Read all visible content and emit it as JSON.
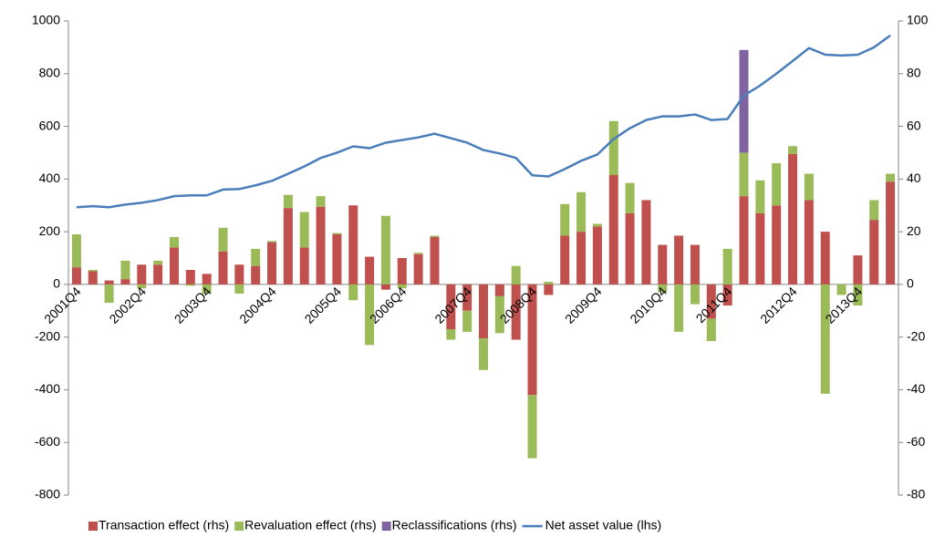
{
  "chart_data": {
    "type": "combo",
    "categories": [
      "2001Q4",
      null,
      null,
      null,
      "2002Q4",
      null,
      null,
      null,
      "2003Q4",
      null,
      null,
      null,
      "2004Q4",
      null,
      null,
      null,
      "2005Q4",
      null,
      null,
      null,
      "2006Q4",
      null,
      null,
      null,
      "2007Q4",
      null,
      null,
      null,
      "2008Q4",
      null,
      null,
      null,
      "2009Q4",
      null,
      null,
      null,
      "2010Q4",
      null,
      null,
      null,
      "2011Q4",
      null,
      null,
      null,
      "2012Q4",
      null,
      null,
      null,
      "2013Q4",
      null,
      null
    ],
    "series": [
      {
        "name": "Transaction effect (rhs)",
        "type": "bar",
        "axis": "y2",
        "color": "#c0504d",
        "values": [
          6.5,
          5,
          1.5,
          2,
          7.5,
          7.5,
          14,
          5.5,
          4,
          12.5,
          7.5,
          7,
          16,
          29,
          14,
          29.5,
          19,
          30,
          10.5,
          -2,
          10,
          11.5,
          18,
          -17,
          -10,
          -20.5,
          -4.5,
          -21,
          -42,
          -4,
          18.5,
          20,
          22,
          41.5,
          27,
          32,
          15,
          18.5,
          15,
          -13,
          -8,
          33.5,
          27,
          30,
          49.5,
          32,
          20,
          0,
          11,
          24.5,
          39
        ]
      },
      {
        "name": "Revaluation effect (rhs)",
        "type": "bar",
        "axis": "y2",
        "color": "#9bbb59",
        "values": [
          12.5,
          0.5,
          -7,
          7,
          -1.5,
          1.5,
          4,
          -0.5,
          -3.5,
          9,
          -3.5,
          6.5,
          0.5,
          5,
          13.5,
          4,
          0.5,
          -6,
          -23,
          26,
          -1.5,
          0.5,
          0.5,
          -4,
          -8,
          -12,
          -14,
          7,
          -24,
          1,
          12,
          15,
          1,
          20.5,
          11.5,
          0,
          -3,
          -18,
          -7.5,
          -8.5,
          13.5,
          16.5,
          12.5,
          16,
          3,
          10,
          -41.5,
          -4,
          -8,
          7.5,
          3
        ]
      },
      {
        "name": "Reclassifications (rhs)",
        "type": "bar",
        "axis": "y2",
        "color": "#8064a2",
        "values": [
          null,
          null,
          null,
          null,
          null,
          null,
          null,
          null,
          null,
          null,
          null,
          null,
          null,
          null,
          null,
          null,
          null,
          null,
          null,
          null,
          null,
          null,
          null,
          null,
          null,
          null,
          null,
          null,
          null,
          null,
          null,
          null,
          null,
          null,
          null,
          null,
          null,
          null,
          null,
          null,
          null,
          39,
          null,
          null,
          null,
          null,
          null,
          null,
          null,
          null,
          null
        ]
      },
      {
        "name": "Net asset value (lhs)",
        "type": "line",
        "axis": "y",
        "color": "#4a7ebb",
        "values": [
          293,
          297,
          293,
          303,
          310,
          320,
          335,
          338,
          338,
          360,
          362,
          376,
          393,
          420,
          448,
          480,
          500,
          524,
          517,
          538,
          548,
          558,
          572,
          555,
          538,
          510,
          497,
          480,
          414,
          410,
          438,
          469,
          493,
          552,
          593,
          624,
          638,
          638,
          645,
          624,
          628,
          717,
          755,
          800,
          848,
          897,
          872,
          869,
          872,
          900,
          945
        ]
      }
    ],
    "ylim": [
      -800,
      1000
    ],
    "yticks": [
      -800,
      -600,
      -400,
      -200,
      0,
      200,
      400,
      600,
      800,
      1000
    ],
    "y2lim": [
      -80,
      100
    ],
    "y2ticks": [
      -80,
      -60,
      -40,
      -20,
      0,
      20,
      40,
      60,
      80,
      100
    ],
    "legend": "bottom"
  }
}
